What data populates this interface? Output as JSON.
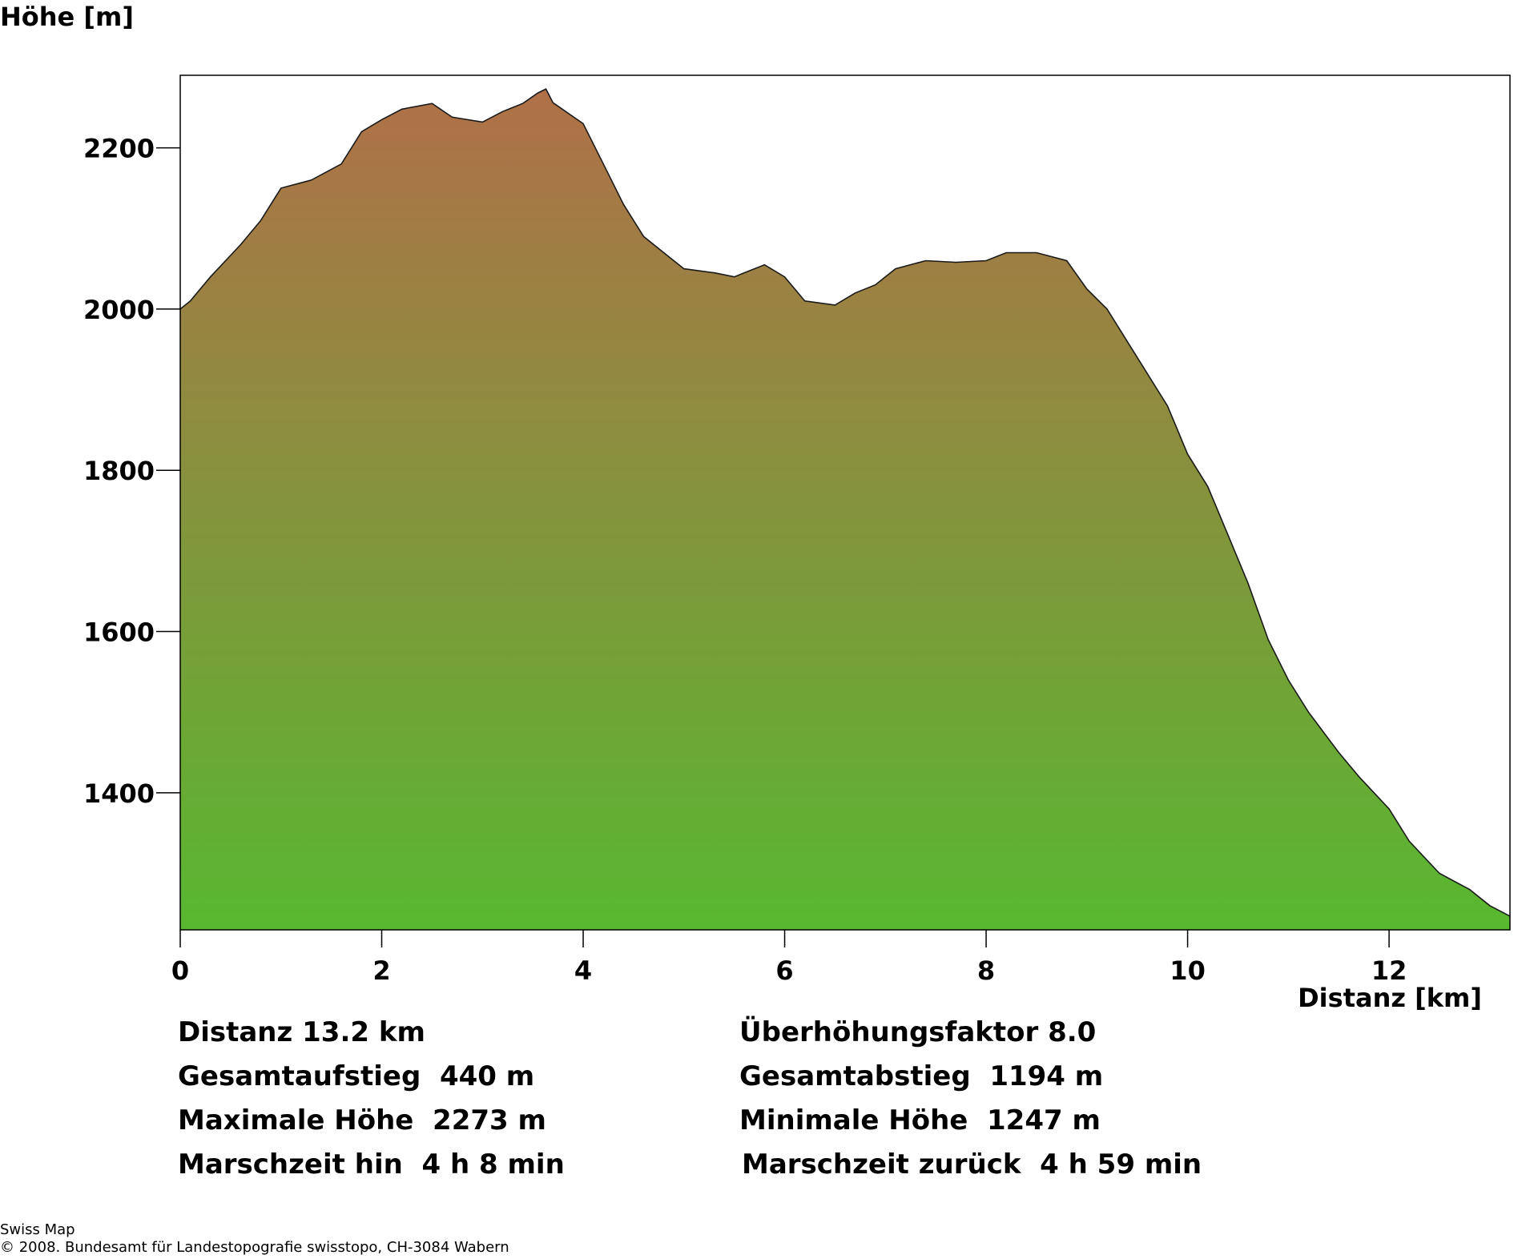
{
  "chart_data": {
    "type": "area",
    "ylabel": "Höhe [m]",
    "xlabel": "Distanz [km]",
    "xlim": [
      0,
      13.2
    ],
    "ylim": [
      1230,
      2290
    ],
    "xticks": [
      0,
      2,
      4,
      6,
      8,
      10,
      12
    ],
    "yticks": [
      1400,
      1600,
      1800,
      2000,
      2200
    ],
    "grid": false,
    "gradient": {
      "top": "#b07048",
      "bottom": "#58b830"
    },
    "series": [
      {
        "x": [
          0,
          0.1,
          0.3,
          0.6,
          0.8,
          1.0,
          1.3,
          1.6,
          1.8,
          2.0,
          2.2,
          2.5,
          2.7,
          3.0,
          3.2,
          3.4,
          3.55,
          3.63,
          3.7,
          4.0,
          4.2,
          4.4,
          4.6,
          4.8,
          5.0,
          5.3,
          5.5,
          5.6,
          5.8,
          6.0,
          6.2,
          6.5,
          6.7,
          6.9,
          7.1,
          7.4,
          7.7,
          8.0,
          8.2,
          8.5,
          8.8,
          9.0,
          9.2,
          9.5,
          9.8,
          10.0,
          10.2,
          10.4,
          10.6,
          10.8,
          11.0,
          11.2,
          11.5,
          11.7,
          12.0,
          12.2,
          12.5,
          12.8,
          13.0,
          13.2
        ],
        "y": [
          2000,
          2010,
          2040,
          2080,
          2110,
          2150,
          2160,
          2180,
          2220,
          2235,
          2248,
          2255,
          2238,
          2232,
          2245,
          2255,
          2268,
          2273,
          2256,
          2230,
          2180,
          2130,
          2090,
          2070,
          2050,
          2045,
          2040,
          2045,
          2055,
          2040,
          2010,
          2005,
          2020,
          2030,
          2050,
          2060,
          2058,
          2060,
          2070,
          2070,
          2060,
          2025,
          2000,
          1940,
          1880,
          1820,
          1780,
          1720,
          1660,
          1590,
          1540,
          1500,
          1450,
          1420,
          1380,
          1340,
          1300,
          1280,
          1260,
          1247
        ]
      }
    ]
  },
  "stats": {
    "distanz": "Distanz 13.2 km",
    "ueberhoehung": "Überhöhungsfaktor 8.0",
    "aufstieg": "Gesamtaufstieg  440 m",
    "abstieg": "Gesamtabstieg  1194 m",
    "max_hoehe": "Maximale Höhe  2273 m",
    "min_hoehe": "Minimale Höhe  1247 m",
    "zeit_hin": "Marschzeit hin  4 h 8 min",
    "zeit_zurueck": "Marschzeit zurück  4 h 59 min"
  },
  "footer": {
    "line1": "Swiss Map",
    "line2": "© 2008. Bundesamt für Landestopografie swisstopo, CH-3084 Wabern"
  }
}
